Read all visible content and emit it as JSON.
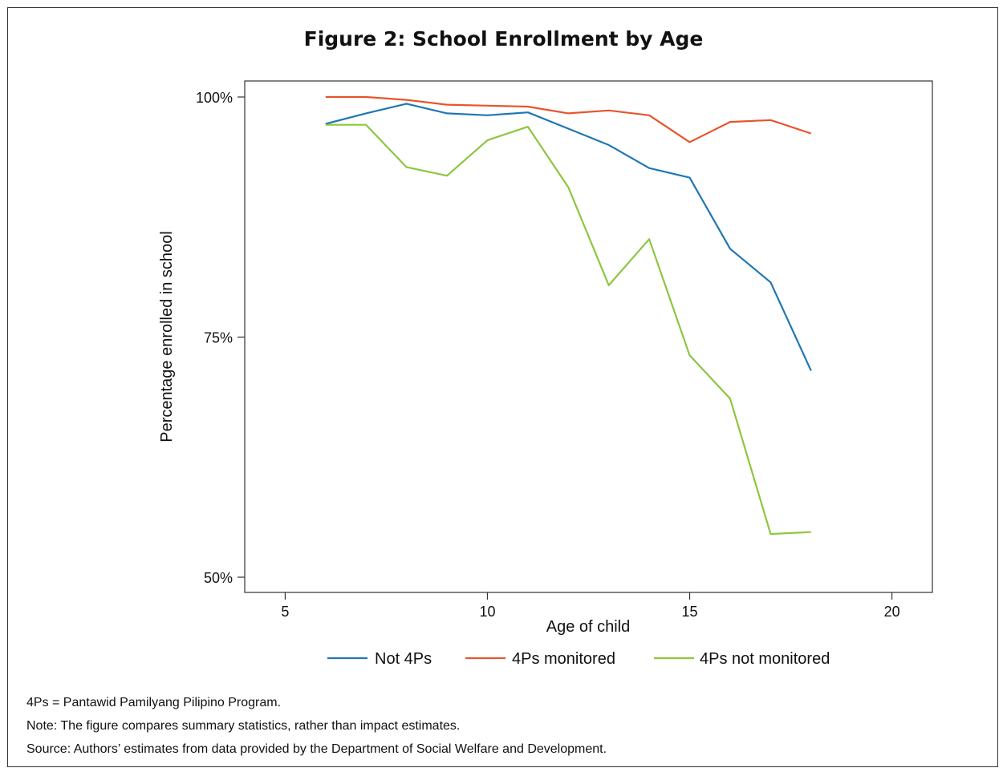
{
  "chart_data": {
    "type": "line",
    "title": "Figure 2: School Enrollment by Age",
    "xlabel": "Age of child",
    "ylabel": "Percentage enrolled in school",
    "xlim": [
      4,
      21
    ],
    "ylim": [
      50,
      100
    ],
    "xticks": [
      5,
      10,
      15,
      20
    ],
    "xtick_labels": [
      "5",
      "10",
      "15",
      "20"
    ],
    "yticks": [
      50,
      75,
      100
    ],
    "ytick_labels": [
      "50%",
      "75%",
      "100%"
    ],
    "grid": false,
    "legend_position": "bottom",
    "x": [
      6,
      7,
      8,
      9,
      10,
      11,
      12,
      13,
      14,
      15,
      16,
      17,
      18
    ],
    "series": [
      {
        "name": "Not 4Ps",
        "color": "#1f77b4",
        "values": [
          97.2,
          98.3,
          99.3,
          98.3,
          98.1,
          98.4,
          96.7,
          95.0,
          92.6,
          91.6,
          84.2,
          80.7,
          71.5
        ]
      },
      {
        "name": "4Ps monitored",
        "color": "#e8542c",
        "values": [
          100.0,
          100.0,
          99.7,
          99.2,
          99.1,
          99.0,
          98.3,
          98.6,
          98.1,
          95.3,
          97.4,
          97.6,
          96.2
        ]
      },
      {
        "name": "4Ps not monitored",
        "color": "#8dc63f",
        "values": [
          97.1,
          97.1,
          92.7,
          91.8,
          95.5,
          96.9,
          90.6,
          80.4,
          85.2,
          73.1,
          68.6,
          54.5,
          54.7
        ]
      }
    ]
  },
  "notes": {
    "line1": "4Ps = Pantawid Pamilyang Pilipino Program.",
    "line2": "Note: The figure compares summary statistics, rather than impact estimates.",
    "line3": "Source: Authors’ estimates from data provided by the Department of Social Welfare and Development."
  }
}
